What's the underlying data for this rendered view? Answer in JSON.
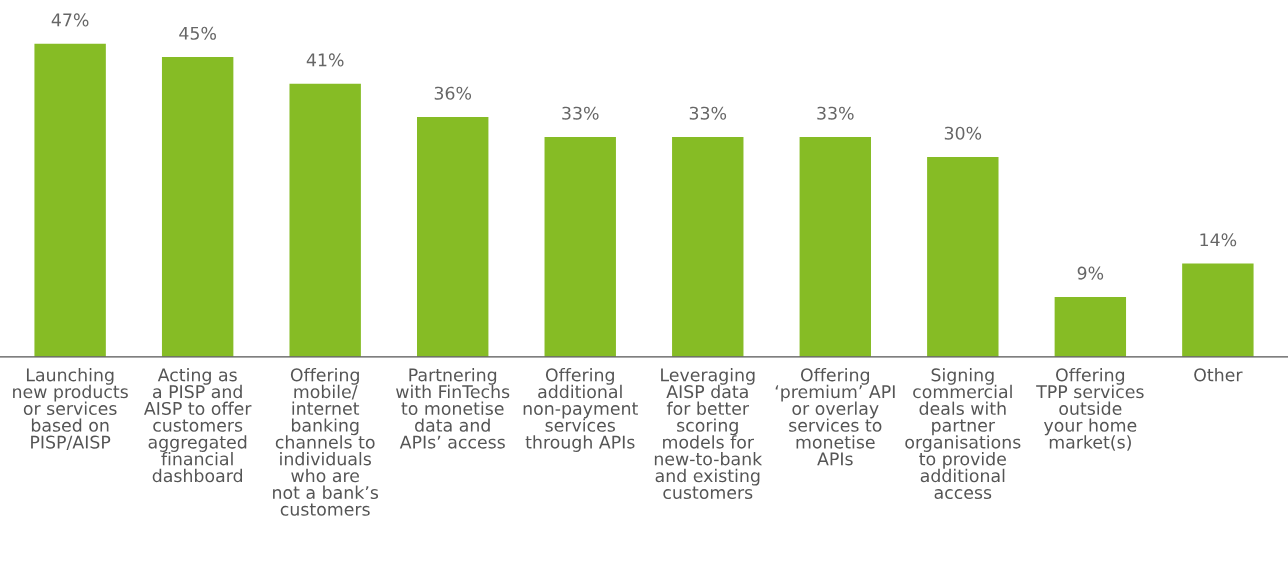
{
  "chart_data": {
    "type": "bar",
    "categories": [
      "Launching\nnew products\nor services\nbased on\nPISP/AISP",
      "Acting as\na PISP and\nAISP to offer\ncustomers\naggregated\nfinancial\ndashboard",
      "Offering\nmobile/\ninternet\nbanking\nchannels to\nindividuals\nwho are\nnot a bank’s\ncustomers",
      "Partnering\nwith FinTechs\nto monetise\ndata and\nAPIs’ access",
      "Offering\nadditional\nnon-payment\nservices\nthrough APIs",
      "Leveraging\nAISP data\nfor better\nscoring\nmodels for\nnew-to-bank\nand existing\ncustomers",
      "Offering\n‘premium’ API\nor overlay\nservices to\nmonetise\nAPIs",
      "Signing\ncommercial\ndeals with\npartner\norganisations\nto provide\nadditional\naccess",
      "Offering\nTPP services\noutside\nyour home\nmarket(s)",
      "Other"
    ],
    "values": [
      47,
      45,
      41,
      36,
      33,
      33,
      33,
      30,
      9,
      14
    ],
    "value_labels": [
      "47%",
      "45%",
      "41%",
      "36%",
      "33%",
      "33%",
      "33%",
      "30%",
      "9%",
      "14%"
    ],
    "color": "#86bc25"
  }
}
